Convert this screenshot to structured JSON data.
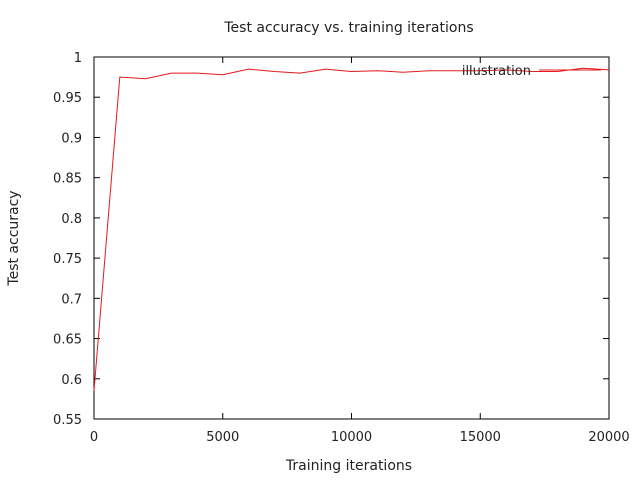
{
  "chart_data": {
    "type": "line",
    "title": "Test accuracy vs. training iterations",
    "xlabel": "Training iterations",
    "ylabel": "Test accuracy",
    "xlim": [
      0,
      20000
    ],
    "ylim": [
      0.55,
      1.0
    ],
    "xticks": [
      0,
      5000,
      10000,
      15000,
      20000
    ],
    "yticks": [
      0.55,
      0.6,
      0.65,
      0.7,
      0.75,
      0.8,
      0.85,
      0.9,
      0.95,
      1.0
    ],
    "xtick_labels": [
      "0",
      "5000",
      "10000",
      "15000",
      "20000"
    ],
    "ytick_labels": [
      "0.55",
      "0.6",
      "0.65",
      "0.7",
      "0.75",
      "0.8",
      "0.85",
      "0.9",
      "0.95",
      "1"
    ],
    "grid": false,
    "legend_position": "top-right",
    "series": [
      {
        "name": "illustration",
        "color": "#e41a1c",
        "x": [
          0,
          1000,
          2000,
          3000,
          4000,
          5000,
          6000,
          7000,
          8000,
          9000,
          10000,
          11000,
          12000,
          13000,
          14000,
          15000,
          16000,
          17000,
          18000,
          19000,
          20000
        ],
        "y": [
          0.585,
          0.975,
          0.973,
          0.98,
          0.98,
          0.978,
          0.985,
          0.982,
          0.98,
          0.985,
          0.982,
          0.983,
          0.981,
          0.983,
          0.983,
          0.983,
          0.984,
          0.982,
          0.982,
          0.986,
          0.984
        ]
      }
    ]
  }
}
